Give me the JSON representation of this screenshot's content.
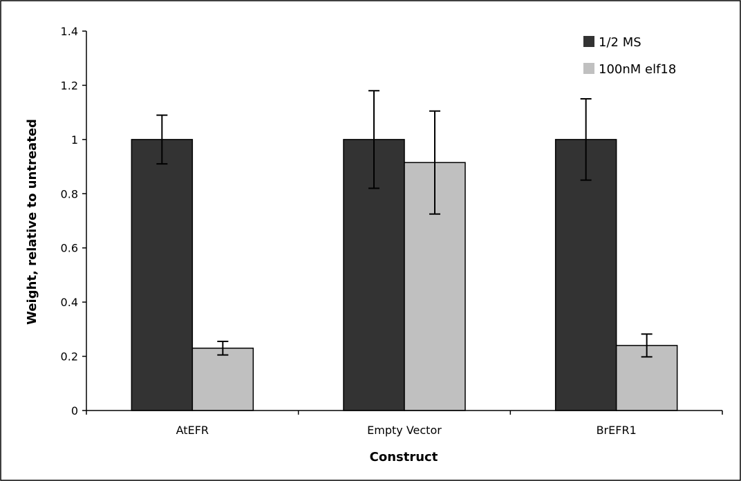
{
  "chart_data": {
    "type": "bar",
    "title": "",
    "xlabel": "Construct",
    "ylabel": "Weight, relative to untreated",
    "categories": [
      "AtEFR",
      "Empty Vector",
      "BrEFR1"
    ],
    "ylim": [
      0,
      1.4
    ],
    "yticks": [
      0,
      0.2,
      0.4,
      0.6,
      0.8,
      1,
      1.2,
      1.4
    ],
    "ytick_labels": [
      "0",
      "0.2",
      "0.4",
      "0.6",
      "0.8",
      "1",
      "1.2",
      "1.4"
    ],
    "series": [
      {
        "name": "1/2 MS",
        "color": "#333333",
        "values": [
          1.0,
          1.0,
          1.0
        ],
        "errors": [
          0.09,
          0.18,
          0.15
        ]
      },
      {
        "name": "100nM elf18",
        "color": "#c0c0c0",
        "values": [
          0.23,
          0.915,
          0.24
        ],
        "errors": [
          0.025,
          0.19,
          0.042
        ]
      }
    ],
    "legend": "top-right",
    "grid": false
  }
}
